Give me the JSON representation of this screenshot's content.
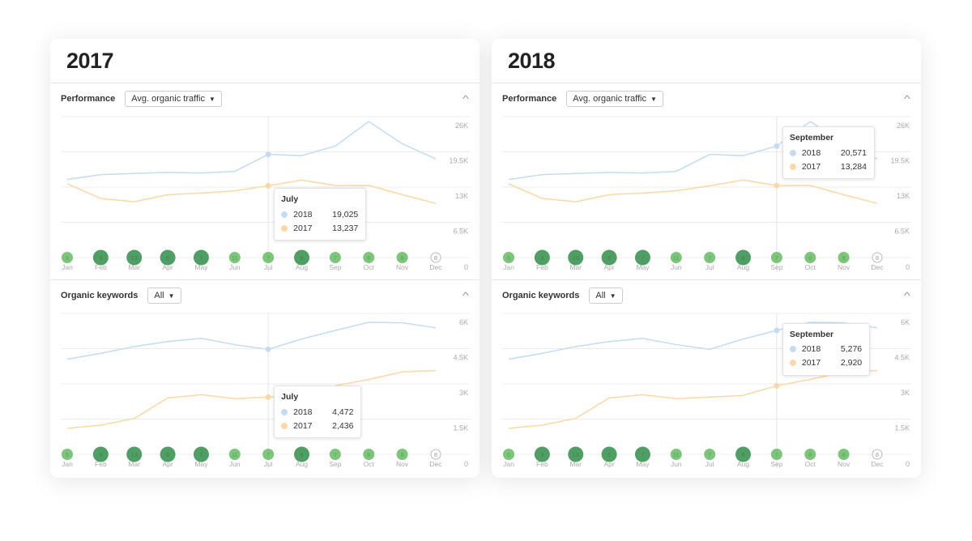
{
  "colors": {
    "series_2018": "#c4dcf3",
    "series_2017": "#fdd7a6",
    "bubble_light": "#7cc57a",
    "bubble_dark": "#4f9e64",
    "grid": "#ececec"
  },
  "months": [
    "Jan",
    "Feb",
    "Mar",
    "Apr",
    "May",
    "Jun",
    "Jul",
    "Aug",
    "Sep",
    "Oct",
    "Nov",
    "Dec"
  ],
  "panels": [
    {
      "title": "2017",
      "performance": {
        "label": "Performance",
        "dropdown": "Avg. organic traffic",
        "tooltip": {
          "month": "July",
          "index": 6,
          "rows": [
            {
              "year": "2018",
              "value": "19,025"
            },
            {
              "year": "2017",
              "value": "13,237"
            }
          ]
        }
      },
      "keywords": {
        "label": "Organic keywords",
        "dropdown": "All",
        "tooltip": {
          "month": "July",
          "index": 6,
          "rows": [
            {
              "year": "2018",
              "value": "4,472"
            },
            {
              "year": "2017",
              "value": "2,436"
            }
          ]
        }
      }
    },
    {
      "title": "2018",
      "performance": {
        "label": "Performance",
        "dropdown": "Avg. organic traffic",
        "tooltip": {
          "month": "September",
          "index": 8,
          "rows": [
            {
              "year": "2018",
              "value": "20,571"
            },
            {
              "year": "2017",
              "value": "13,284"
            }
          ]
        }
      },
      "keywords": {
        "label": "Organic keywords",
        "dropdown": "All",
        "tooltip": {
          "month": "September",
          "index": 8,
          "rows": [
            {
              "year": "2018",
              "value": "5,276"
            },
            {
              "year": "2017",
              "value": "2,920"
            }
          ]
        }
      }
    }
  ],
  "chart_data": [
    {
      "type": "line",
      "title": "Performance — Avg. organic traffic",
      "categories": [
        "Jan",
        "Feb",
        "Mar",
        "Apr",
        "May",
        "Jun",
        "Jul",
        "Aug",
        "Sep",
        "Oct",
        "Nov",
        "Dec"
      ],
      "ylim": [
        0,
        26000
      ],
      "yticks": [
        "0",
        "6.5K",
        "13K",
        "19.5K",
        "26K"
      ],
      "grid": true,
      "series": [
        {
          "name": "2018",
          "values": [
            14400,
            15300,
            15500,
            15700,
            15600,
            15900,
            19025,
            18800,
            20571,
            25100,
            21000,
            18200
          ]
        },
        {
          "name": "2017",
          "values": [
            13600,
            10900,
            10300,
            11600,
            11900,
            12300,
            13237,
            14300,
            13284,
            13300,
            11600,
            10000
          ]
        }
      ],
      "events": {
        "values": [
          6,
          3,
          13,
          6,
          7,
          11,
          7,
          8,
          7,
          8,
          8,
          8
        ],
        "emphasis": [
          "light",
          "dark",
          "dark",
          "dark",
          "dark",
          "light",
          "light",
          "dark",
          "light",
          "light",
          "light",
          "none"
        ]
      }
    },
    {
      "type": "line",
      "title": "Organic keywords — All",
      "categories": [
        "Jan",
        "Feb",
        "Mar",
        "Apr",
        "May",
        "Jun",
        "Jul",
        "Aug",
        "Sep",
        "Oct",
        "Nov",
        "Dec"
      ],
      "ylim": [
        0,
        6000
      ],
      "yticks": [
        "0",
        "1.5K",
        "3K",
        "4.5K",
        "6K"
      ],
      "grid": true,
      "series": [
        {
          "name": "2018",
          "values": [
            4050,
            4300,
            4590,
            4800,
            4940,
            4670,
            4472,
            4910,
            5276,
            5620,
            5600,
            5390
          ]
        },
        {
          "name": "2017",
          "values": [
            1110,
            1240,
            1530,
            2400,
            2540,
            2370,
            2436,
            2510,
            2920,
            3190,
            3510,
            3570
          ]
        }
      ],
      "events": {
        "values": [
          6,
          3,
          13,
          6,
          7,
          11,
          7,
          8,
          7,
          8,
          8,
          8
        ],
        "emphasis": [
          "light",
          "dark",
          "dark",
          "dark",
          "dark",
          "light",
          "light",
          "dark",
          "light",
          "light",
          "light",
          "none"
        ]
      }
    }
  ]
}
